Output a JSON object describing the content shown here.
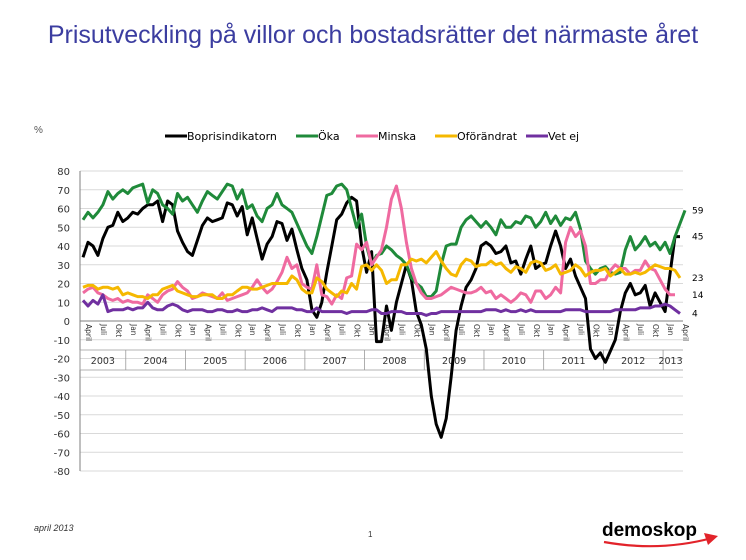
{
  "title": "Prisutveckling på villor och bostadsrätter det närmaste året",
  "footer": {
    "date": "april 2013",
    "page": "1",
    "logo": "demoskop"
  },
  "colors": {
    "title": "#3b3da0",
    "logo": "#1e3a78",
    "logo_arrow": "#e2232a"
  },
  "chart_data": {
    "type": "line",
    "ylabel": "%",
    "ylim": [
      -80,
      80
    ],
    "yticks": [
      80,
      70,
      60,
      50,
      40,
      30,
      20,
      10,
      0,
      -10,
      -20,
      -30,
      -40,
      -50,
      -60,
      -70,
      -80
    ],
    "x_period": {
      "start": "2003-04",
      "end": "2013-04",
      "interval": "month"
    },
    "month_labels": [
      "April",
      "Juli",
      "Okt",
      "Jan"
    ],
    "years": [
      "2003",
      "2004",
      "2005",
      "2006",
      "2007",
      "2008",
      "2009",
      "2010",
      "2011",
      "2012",
      "2013"
    ],
    "legend": {
      "position": "top"
    },
    "grid": true,
    "series": [
      {
        "name": "Boprisindikatorn",
        "color": "#000000",
        "values": [
          34,
          42,
          40,
          35,
          44,
          50,
          51,
          58,
          53,
          55,
          58,
          57,
          60,
          62,
          62,
          64,
          53,
          64,
          62,
          48,
          42,
          37,
          35,
          43,
          51,
          55,
          53,
          54,
          55,
          63,
          62,
          56,
          61,
          46,
          55,
          44,
          33,
          41,
          45,
          53,
          52,
          43,
          49,
          38,
          28,
          22,
          6,
          2,
          10,
          26,
          40,
          54,
          57,
          63,
          66,
          64,
          40,
          26,
          37,
          -11,
          -11,
          8,
          -5,
          10,
          20,
          30,
          22,
          5,
          -2,
          -15,
          -40,
          -55,
          -62,
          -52,
          -30,
          -5,
          8,
          18,
          22,
          28,
          40,
          42,
          40,
          36,
          37,
          40,
          31,
          32,
          25,
          33,
          40,
          28,
          30,
          31,
          40,
          48,
          40,
          28,
          33,
          24,
          18,
          12,
          -15,
          -20,
          -17,
          -22,
          -16,
          -10,
          5,
          15,
          20,
          14,
          15,
          19,
          8,
          15,
          10,
          5,
          25,
          45,
          45
        ],
        "end_label": "45"
      },
      {
        "name": "Öka",
        "color": "#1f8a3a",
        "values": [
          54,
          58,
          55,
          58,
          62,
          69,
          65,
          68,
          70,
          68,
          71,
          72,
          73,
          63,
          70,
          68,
          62,
          60,
          57,
          68,
          64,
          66,
          62,
          58,
          64,
          69,
          67,
          65,
          69,
          73,
          72,
          65,
          70,
          60,
          62,
          56,
          53,
          60,
          62,
          68,
          62,
          60,
          58,
          52,
          46,
          40,
          36,
          45,
          56,
          67,
          68,
          72,
          73,
          70,
          60,
          50,
          57,
          40,
          30,
          35,
          36,
          40,
          38,
          35,
          33,
          30,
          23,
          20,
          18,
          13,
          13,
          16,
          30,
          40,
          41,
          41,
          50,
          54,
          56,
          53,
          50,
          53,
          50,
          46,
          54,
          50,
          50,
          53,
          52,
          56,
          55,
          50,
          53,
          58,
          52,
          56,
          51,
          55,
          54,
          58,
          49,
          32,
          28,
          25,
          28,
          29,
          26,
          25,
          26,
          38,
          45,
          38,
          41,
          45,
          40,
          42,
          38,
          42,
          36,
          45,
          52,
          59
        ],
        "end_label": "59"
      },
      {
        "name": "Minska",
        "color": "#ef6aa0",
        "values": [
          15,
          17,
          18,
          15,
          14,
          12,
          11,
          12,
          10,
          11,
          10,
          10,
          9,
          14,
          12,
          10,
          14,
          16,
          17,
          21,
          18,
          16,
          12,
          13,
          15,
          14,
          13,
          12,
          15,
          11,
          12,
          13,
          14,
          15,
          18,
          22,
          18,
          15,
          17,
          21,
          26,
          34,
          28,
          30,
          20,
          18,
          17,
          30,
          14,
          13,
          9,
          14,
          12,
          23,
          24,
          41,
          38,
          42,
          30,
          34,
          38,
          50,
          65,
          72,
          60,
          42,
          28,
          20,
          15,
          12,
          12,
          13,
          14,
          16,
          18,
          17,
          16,
          15,
          15,
          16,
          18,
          15,
          16,
          12,
          14,
          12,
          10,
          12,
          15,
          14,
          10,
          16,
          16,
          12,
          14,
          18,
          15,
          42,
          50,
          45,
          48,
          40,
          20,
          20,
          22,
          22,
          27,
          30,
          28,
          28,
          25,
          27,
          27,
          32,
          28,
          27,
          22,
          17,
          14,
          14
        ],
        "end_label": "14"
      },
      {
        "name": "Oförändrat",
        "color": "#f5b800",
        "values": [
          18,
          19,
          19,
          17,
          18,
          18,
          17,
          18,
          14,
          15,
          14,
          13,
          13,
          12,
          14,
          14,
          17,
          18,
          19,
          16,
          15,
          14,
          13,
          13,
          14,
          14,
          14,
          12,
          12,
          14,
          14,
          16,
          18,
          18,
          17,
          17,
          18,
          19,
          20,
          20,
          20,
          20,
          24,
          22,
          17,
          15,
          15,
          23,
          21,
          17,
          15,
          13,
          16,
          15,
          20,
          17,
          29,
          30,
          27,
          30,
          27,
          20,
          22,
          22,
          30,
          30,
          33,
          32,
          33,
          31,
          34,
          37,
          32,
          28,
          25,
          24,
          30,
          33,
          32,
          29,
          30,
          30,
          32,
          30,
          31,
          28,
          26,
          29,
          28,
          26,
          31,
          32,
          31,
          27,
          28,
          30,
          25,
          26,
          27,
          30,
          28,
          24,
          26,
          27,
          27,
          28,
          24,
          26,
          28,
          25,
          25,
          26,
          25,
          26,
          28,
          30,
          29,
          28,
          28,
          27,
          23
        ],
        "end_label": "23"
      },
      {
        "name": "Vet ej",
        "color": "#7030a0",
        "values": [
          11,
          8,
          11,
          9,
          14,
          5,
          6,
          6,
          6,
          7,
          6,
          7,
          7,
          10,
          7,
          6,
          6,
          8,
          9,
          8,
          6,
          5,
          6,
          6,
          6,
          5,
          5,
          6,
          6,
          5,
          5,
          6,
          5,
          5,
          6,
          6,
          7,
          6,
          5,
          7,
          7,
          7,
          7,
          6,
          6,
          5,
          5,
          7,
          5,
          5,
          5,
          5,
          5,
          4,
          5,
          5,
          5,
          5,
          6,
          6,
          4,
          4,
          5,
          5,
          5,
          4,
          4,
          4,
          4,
          3,
          4,
          4,
          5,
          5,
          5,
          5,
          5,
          5,
          5,
          5,
          5,
          6,
          6,
          6,
          5,
          6,
          5,
          5,
          6,
          5,
          6,
          5,
          5,
          5,
          5,
          5,
          5,
          6,
          6,
          6,
          6,
          5,
          5,
          5,
          5,
          5,
          5,
          6,
          6,
          6,
          6,
          6,
          7,
          7,
          7,
          8,
          8,
          9,
          8,
          6,
          4
        ],
        "end_label": "4"
      }
    ]
  }
}
